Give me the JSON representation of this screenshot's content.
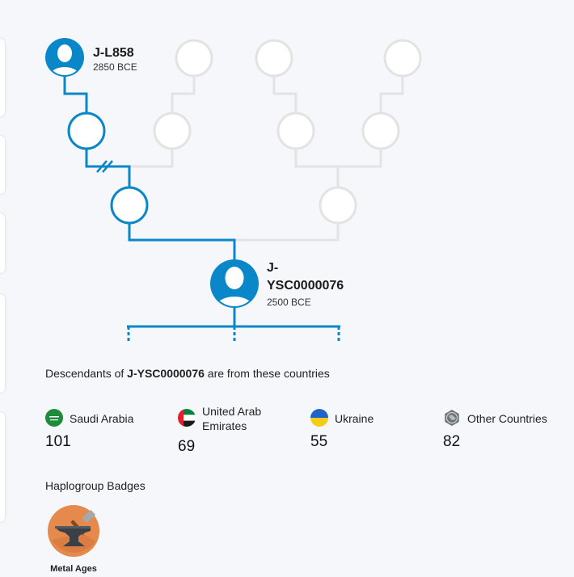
{
  "tree": {
    "ancestor": {
      "name": "J-L858",
      "date": "2850 BCE"
    },
    "current": {
      "name_line1": "J-",
      "name_line2": "YSC0000076",
      "date": "2500 BCE"
    }
  },
  "descendants": {
    "prefix": "Descendants of ",
    "haplogroup": "J-YSC0000076",
    "suffix": " are from these countries"
  },
  "countries": [
    {
      "name": "Saudi Arabia",
      "count": "101",
      "flag_icon": "saudi-arabia-flag-icon"
    },
    {
      "name_line1": "United Arab",
      "name_line2": "Emirates",
      "count": "69",
      "flag_icon": "uae-flag-icon"
    },
    {
      "name": "Ukraine",
      "count": "55",
      "flag_icon": "ukraine-flag-icon"
    },
    {
      "name": "Other Countries",
      "count": "82",
      "flag_icon": "globe-icon"
    }
  ],
  "badges": {
    "heading": "Haplogroup Badges",
    "items": [
      {
        "label": "Metal Ages",
        "icon": "anvil-hammer-icon"
      }
    ]
  },
  "colors": {
    "accent": "#0a87c9",
    "inactive": "#e3e3e3",
    "badge_bg": "#e5894d"
  }
}
